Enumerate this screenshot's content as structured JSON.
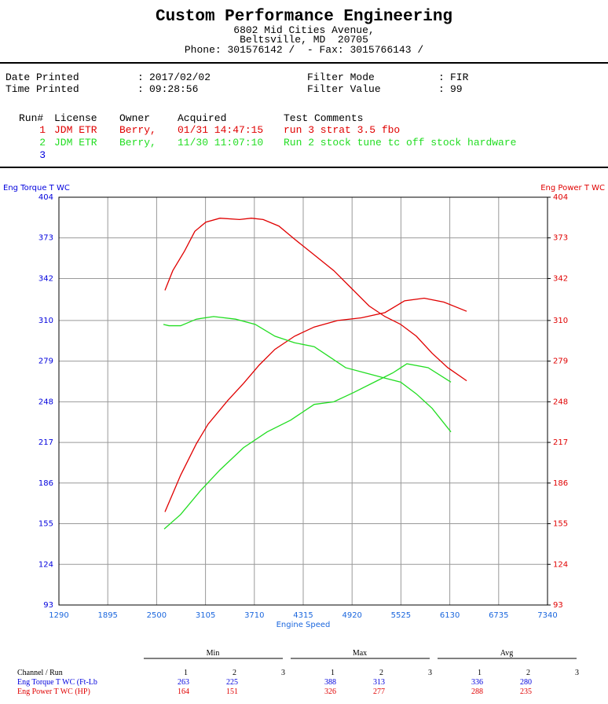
{
  "header": {
    "title": "Custom Performance Engineering",
    "address": [
      "6802 Mid Cities Avenue,",
      "Beltsville, MD  20705",
      "Phone: 301576142 /  - Fax: 3015766143 /"
    ]
  },
  "info": {
    "separator": ":",
    "rows": [
      [
        {
          "label": "Date Printed",
          "value": "2017/02/02"
        },
        {
          "label": "Filter Mode",
          "value": "FIR"
        }
      ],
      [
        {
          "label": "Time Printed",
          "value": "09:28:56"
        },
        {
          "label": "Filter Value",
          "value": "99"
        }
      ]
    ]
  },
  "runs": {
    "header": [
      "Run#",
      "License",
      "Owner",
      "Acquired",
      "Test Comments"
    ],
    "rows": [
      {
        "color": "#e00000",
        "cells": [
          "1",
          "JDM ETR",
          "Berry,",
          "01/31 14:47:15",
          "run 3 strat 3.5 fbo"
        ]
      },
      {
        "color": "#22dd22",
        "cells": [
          "2",
          "JDM ETR",
          "Berry,",
          "11/30 11:07:10",
          "Run 2 stock tune tc off stock hardware"
        ]
      },
      {
        "color": "#0000dd",
        "cells": [
          "3"
        ]
      }
    ]
  },
  "chart_data": {
    "type": "line",
    "y_label": "Eng Torque T WC",
    "y2_label": "Eng Power T WC",
    "x_label": "Engine Speed",
    "xlim": [
      1290,
      7340
    ],
    "xticks": [
      1290,
      1895,
      2500,
      3105,
      3710,
      4315,
      4920,
      5525,
      6130,
      6735,
      7340
    ],
    "ylim": [
      93,
      404
    ],
    "yticks": [
      93,
      124,
      155,
      186,
      217,
      248,
      279,
      310,
      342,
      373,
      404
    ],
    "y2lim": [
      93,
      404
    ],
    "y2ticks": [
      93,
      124,
      155,
      186,
      217,
      248,
      279,
      310,
      342,
      373,
      404
    ],
    "grid": true,
    "y_color": "#0000dd",
    "y2_color": "#e00000",
    "x_color": "#1a66dd",
    "series": [
      {
        "color": "#e00000",
        "x": [
          2603,
          2700,
          2846,
          2973,
          3109,
          3284,
          3527,
          3673,
          3819,
          4014,
          4208,
          4451,
          4694,
          4889,
          5132,
          5327,
          5522,
          5716,
          5911,
          6105,
          6339
        ],
        "values": [
          333,
          348,
          363,
          378,
          385,
          388,
          387,
          388,
          387,
          382,
          372,
          360,
          348,
          336,
          321,
          313,
          307,
          298,
          285,
          274,
          264
        ]
      },
      {
        "color": "#e00000",
        "axis": "y2",
        "x": [
          2603,
          2797,
          2992,
          3138,
          3381,
          3576,
          3770,
          3965,
          4208,
          4451,
          4743,
          5035,
          5327,
          5570,
          5813,
          6057,
          6339
        ],
        "values": [
          164,
          192,
          216,
          231,
          249,
          262,
          276,
          288,
          298,
          305,
          310,
          312,
          316,
          325,
          327,
          324,
          317
        ]
      },
      {
        "color": "#22dd22",
        "x": [
          2584,
          2652,
          2797,
          2992,
          3206,
          3478,
          3721,
          3965,
          4208,
          4451,
          4646,
          4840,
          5084,
          5327,
          5522,
          5716,
          5911,
          6144
        ],
        "values": [
          307,
          306,
          306,
          311,
          313,
          311,
          307,
          298,
          293,
          290,
          282,
          274,
          270,
          266,
          263,
          254,
          243,
          225
        ]
      },
      {
        "color": "#22dd22",
        "axis": "y2",
        "x": [
          2594,
          2797,
          3040,
          3284,
          3576,
          3868,
          4160,
          4451,
          4694,
          4937,
          5229,
          5424,
          5599,
          5862,
          6144
        ],
        "values": [
          151,
          162,
          180,
          196,
          213,
          225,
          234,
          246,
          248,
          255,
          264,
          270,
          277,
          274,
          263
        ]
      }
    ]
  },
  "summary": {
    "groups": [
      "Min",
      "Max",
      "Avg"
    ],
    "header_label": "Channel / Run",
    "run_numbers": [
      1,
      2,
      3
    ],
    "rows": [
      {
        "label": "Eng Torque T WC (Ft-Lb",
        "color": "#0000dd",
        "values": [
          [
            263,
            225
          ],
          [
            388,
            313
          ],
          [
            336,
            280
          ]
        ]
      },
      {
        "label": "Eng Power T WC (HP)",
        "color": "#e00000",
        "values": [
          [
            164,
            151
          ],
          [
            326,
            277
          ],
          [
            288,
            235
          ]
        ]
      }
    ]
  }
}
